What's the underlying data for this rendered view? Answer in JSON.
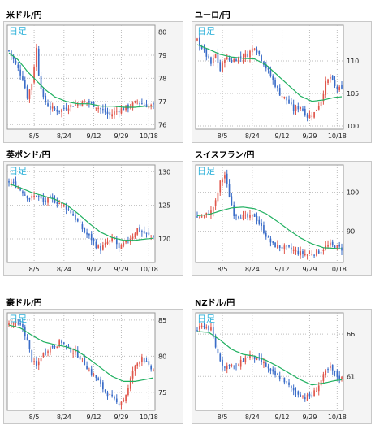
{
  "colors": {
    "up_candle": "#e0554a",
    "down_candle": "#3a6cc8",
    "moving_average": "#20b060",
    "grid": "#bdbdbd",
    "panel_label": "#2bb0d9"
  },
  "chart_data": [
    {
      "type": "candlestick",
      "title": "米ドル/円",
      "overlay_label": "日足",
      "x_ticks": [
        "8/5",
        "8/24",
        "9/12",
        "9/29",
        "10/18"
      ],
      "y_ticks": [
        80,
        79,
        78,
        77,
        76
      ],
      "ylim": [
        75.8,
        80.3
      ],
      "grid": true,
      "close_path": [
        [
          0,
          79.2
        ],
        [
          3,
          78.6
        ],
        [
          6,
          78.0
        ],
        [
          8,
          77.2
        ],
        [
          10,
          77.8
        ],
        [
          12,
          79.3
        ],
        [
          13,
          78.2
        ],
        [
          15,
          77.1
        ],
        [
          18,
          76.7
        ],
        [
          22,
          76.6
        ],
        [
          26,
          76.8
        ],
        [
          30,
          76.9
        ],
        [
          34,
          77.0
        ],
        [
          38,
          76.8
        ],
        [
          41,
          76.6
        ],
        [
          44,
          76.4
        ],
        [
          47,
          76.6
        ],
        [
          50,
          76.7
        ],
        [
          53,
          76.8
        ],
        [
          56,
          77.0
        ],
        [
          58,
          76.9
        ],
        [
          61,
          76.8
        ],
        [
          63,
          76.8
        ]
      ],
      "ma_path": [
        [
          0,
          79.1
        ],
        [
          4,
          78.8
        ],
        [
          8,
          78.3
        ],
        [
          12,
          77.9
        ],
        [
          16,
          77.5
        ],
        [
          20,
          77.2
        ],
        [
          25,
          77.0
        ],
        [
          30,
          76.9
        ],
        [
          35,
          76.9
        ],
        [
          40,
          76.8
        ],
        [
          45,
          76.8
        ],
        [
          50,
          76.75
        ],
        [
          55,
          76.75
        ],
        [
          60,
          76.8
        ],
        [
          63,
          76.8
        ]
      ]
    },
    {
      "type": "candlestick",
      "title": "ユーロ/円",
      "overlay_label": "日足",
      "x_ticks": [
        "8/5",
        "8/24",
        "9/12",
        "9/29",
        "10/18"
      ],
      "y_ticks": [
        110,
        105,
        100
      ],
      "ylim": [
        99.5,
        115.5
      ],
      "grid": true,
      "close_path": [
        [
          0,
          113.2
        ],
        [
          3,
          111.5
        ],
        [
          6,
          109.5
        ],
        [
          8,
          111.0
        ],
        [
          10,
          108.5
        ],
        [
          12,
          110.5
        ],
        [
          15,
          110.0
        ],
        [
          18,
          110.5
        ],
        [
          22,
          111.0
        ],
        [
          25,
          112.3
        ],
        [
          27,
          111.0
        ],
        [
          30,
          109.0
        ],
        [
          33,
          107.0
        ],
        [
          36,
          105.0
        ],
        [
          39,
          104.0
        ],
        [
          42,
          102.5
        ],
        [
          45,
          103.0
        ],
        [
          48,
          101.5
        ],
        [
          51,
          102.0
        ],
        [
          54,
          104.0
        ],
        [
          56,
          106.5
        ],
        [
          58,
          107.5
        ],
        [
          60,
          106.0
        ],
        [
          63,
          105.5
        ]
      ],
      "ma_path": [
        [
          0,
          112.5
        ],
        [
          5,
          111.8
        ],
        [
          10,
          111.0
        ],
        [
          15,
          110.6
        ],
        [
          20,
          110.4
        ],
        [
          25,
          110.3
        ],
        [
          30,
          109.4
        ],
        [
          35,
          107.8
        ],
        [
          40,
          106.2
        ],
        [
          45,
          104.6
        ],
        [
          50,
          103.8
        ],
        [
          55,
          104.0
        ],
        [
          60,
          104.4
        ],
        [
          63,
          104.5
        ]
      ]
    },
    {
      "type": "candlestick",
      "title": "英ポンド/円",
      "overlay_label": "日足",
      "x_ticks": [
        "8/5",
        "8/24",
        "9/12",
        "9/29",
        "10/18"
      ],
      "y_ticks": [
        130,
        125,
        120
      ],
      "ylim": [
        116.5,
        131
      ],
      "grid": true,
      "close_path": [
        [
          0,
          128.5
        ],
        [
          3,
          128.0
        ],
        [
          6,
          127.0
        ],
        [
          9,
          126.0
        ],
        [
          12,
          126.5
        ],
        [
          15,
          125.5
        ],
        [
          18,
          126.0
        ],
        [
          21,
          125.5
        ],
        [
          24,
          125.0
        ],
        [
          27,
          124.0
        ],
        [
          30,
          122.5
        ],
        [
          33,
          121.0
        ],
        [
          36,
          120.0
        ],
        [
          38,
          119.0
        ],
        [
          40,
          118.5
        ],
        [
          43,
          119.5
        ],
        [
          46,
          120.0
        ],
        [
          48,
          118.5
        ],
        [
          51,
          119.5
        ],
        [
          54,
          120.5
        ],
        [
          56,
          121.5
        ],
        [
          58,
          121.0
        ],
        [
          61,
          120.5
        ],
        [
          63,
          120.5
        ]
      ],
      "ma_path": [
        [
          0,
          128.2
        ],
        [
          5,
          127.6
        ],
        [
          10,
          126.9
        ],
        [
          15,
          126.4
        ],
        [
          20,
          125.9
        ],
        [
          25,
          125.1
        ],
        [
          30,
          123.8
        ],
        [
          35,
          122.3
        ],
        [
          40,
          121.0
        ],
        [
          45,
          120.2
        ],
        [
          50,
          119.8
        ],
        [
          55,
          119.8
        ],
        [
          60,
          120.0
        ],
        [
          63,
          120.1
        ]
      ]
    },
    {
      "type": "candlestick",
      "title": "スイスフラン/円",
      "overlay_label": "日足",
      "x_ticks": [
        "8/5",
        "8/24",
        "9/12",
        "9/29",
        "10/18"
      ],
      "y_ticks": [
        100,
        90
      ],
      "ylim": [
        82,
        107
      ],
      "grid": true,
      "close_path": [
        [
          0,
          93.5
        ],
        [
          3,
          94.0
        ],
        [
          6,
          95.0
        ],
        [
          8,
          97.5
        ],
        [
          10,
          102.5
        ],
        [
          12,
          104.5
        ],
        [
          14,
          99.0
        ],
        [
          16,
          94.5
        ],
        [
          19,
          94.0
        ],
        [
          22,
          93.5
        ],
        [
          25,
          94.0
        ],
        [
          27,
          92.0
        ],
        [
          29,
          90.0
        ],
        [
          31,
          88.0
        ],
        [
          33,
          86.5
        ],
        [
          36,
          86.0
        ],
        [
          40,
          85.5
        ],
        [
          44,
          84.5
        ],
        [
          48,
          84.0
        ],
        [
          51,
          84.5
        ],
        [
          54,
          85.0
        ],
        [
          56,
          86.0
        ],
        [
          58,
          86.5
        ],
        [
          61,
          86.0
        ],
        [
          63,
          85.5
        ]
      ],
      "ma_path": [
        [
          0,
          94.0
        ],
        [
          5,
          94.3
        ],
        [
          10,
          95.2
        ],
        [
          15,
          96.0
        ],
        [
          20,
          96.2
        ],
        [
          25,
          95.8
        ],
        [
          30,
          94.5
        ],
        [
          35,
          92.5
        ],
        [
          40,
          90.3
        ],
        [
          45,
          88.3
        ],
        [
          50,
          86.8
        ],
        [
          55,
          85.8
        ],
        [
          60,
          85.6
        ],
        [
          63,
          85.5
        ]
      ]
    },
    {
      "type": "candlestick",
      "title": "豪ドル/円",
      "overlay_label": "日足",
      "x_ticks": [
        "8/5",
        "8/24",
        "9/12",
        "9/29",
        "10/18"
      ],
      "y_ticks": [
        85,
        80,
        75
      ],
      "ylim": [
        72.5,
        86
      ],
      "grid": true,
      "close_path": [
        [
          0,
          84.5
        ],
        [
          3,
          84.5
        ],
        [
          6,
          84.0
        ],
        [
          8,
          82.0
        ],
        [
          10,
          79.5
        ],
        [
          12,
          78.5
        ],
        [
          14,
          80.0
        ],
        [
          17,
          81.0
        ],
        [
          20,
          81.5
        ],
        [
          23,
          82.0
        ],
        [
          26,
          81.0
        ],
        [
          29,
          80.5
        ],
        [
          32,
          79.5
        ],
        [
          35,
          78.0
        ],
        [
          38,
          77.0
        ],
        [
          41,
          75.5
        ],
        [
          44,
          74.5
        ],
        [
          47,
          73.5
        ],
        [
          50,
          74.0
        ],
        [
          52,
          75.5
        ],
        [
          54,
          78.0
        ],
        [
          56,
          79.0
        ],
        [
          58,
          80.0
        ],
        [
          61,
          78.5
        ],
        [
          63,
          78.0
        ]
      ],
      "ma_path": [
        [
          0,
          84.3
        ],
        [
          5,
          83.9
        ],
        [
          10,
          82.9
        ],
        [
          15,
          82.0
        ],
        [
          20,
          81.6
        ],
        [
          25,
          81.3
        ],
        [
          30,
          80.7
        ],
        [
          35,
          79.6
        ],
        [
          40,
          78.4
        ],
        [
          45,
          77.2
        ],
        [
          50,
          76.5
        ],
        [
          55,
          76.5
        ],
        [
          60,
          76.8
        ],
        [
          63,
          77.0
        ]
      ]
    },
    {
      "type": "candlestick",
      "title": "NZドル/円",
      "overlay_label": "日足",
      "x_ticks": [
        "8/5",
        "8/24",
        "9/12",
        "9/29",
        "10/18"
      ],
      "y_ticks": [
        66,
        61
      ],
      "ylim": [
        57,
        68.5
      ],
      "grid": true,
      "close_path": [
        [
          0,
          66.5
        ],
        [
          3,
          67.0
        ],
        [
          6,
          66.5
        ],
        [
          8,
          64.5
        ],
        [
          10,
          63.0
        ],
        [
          12,
          62.0
        ],
        [
          14,
          62.5
        ],
        [
          17,
          62.0
        ],
        [
          20,
          63.0
        ],
        [
          23,
          63.5
        ],
        [
          26,
          63.0
        ],
        [
          29,
          62.5
        ],
        [
          32,
          61.5
        ],
        [
          35,
          61.0
        ],
        [
          38,
          60.5
        ],
        [
          41,
          59.5
        ],
        [
          44,
          59.0
        ],
        [
          47,
          58.5
        ],
        [
          50,
          58.8
        ],
        [
          52,
          59.5
        ],
        [
          54,
          60.5
        ],
        [
          56,
          61.5
        ],
        [
          58,
          62.0
        ],
        [
          61,
          61.0
        ],
        [
          63,
          60.8
        ]
      ],
      "ma_path": [
        [
          0,
          66.3
        ],
        [
          5,
          66.2
        ],
        [
          10,
          65.3
        ],
        [
          15,
          64.2
        ],
        [
          20,
          63.6
        ],
        [
          25,
          63.4
        ],
        [
          30,
          62.9
        ],
        [
          35,
          62.2
        ],
        [
          40,
          61.4
        ],
        [
          45,
          60.6
        ],
        [
          50,
          60.0
        ],
        [
          55,
          60.2
        ],
        [
          60,
          60.5
        ],
        [
          63,
          60.6
        ]
      ]
    }
  ]
}
